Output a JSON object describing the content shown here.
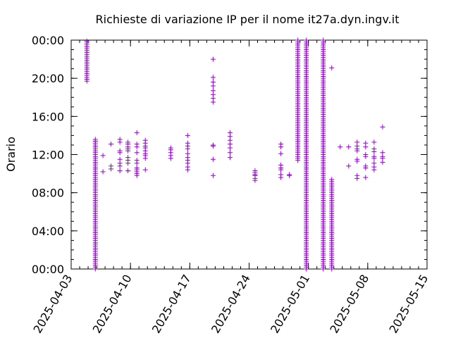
{
  "chart_data": {
    "type": "scatter",
    "title": "Richieste di variazione IP per il nome it27a.dyn.ingv.it",
    "xlabel": "",
    "ylabel": "Orario",
    "marker": "+",
    "color": "#9400d3",
    "grid": false,
    "x_ticks": [
      "2025-04-03",
      "2025-04-10",
      "2025-04-17",
      "2025-04-24",
      "2025-05-01",
      "2025-05-08",
      "2025-05-15"
    ],
    "xlim_days": [
      0,
      42
    ],
    "y_ticks": [
      "00:00",
      "04:00",
      "08:00",
      "12:00",
      "16:00",
      "20:00",
      "00:00"
    ],
    "ylim_hours": [
      0,
      24
    ],
    "x_unit": "days since 2025-04-03",
    "y_unit": "hours of day",
    "columns": [
      {
        "day": 1.85,
        "hours": [
          19.7,
          19.9,
          20.1,
          20.3,
          20.5,
          20.7,
          20.9,
          21.1,
          21.3,
          21.5,
          21.7,
          21.9,
          22.1,
          22.3,
          22.5,
          22.7,
          22.9,
          23.1,
          23.3,
          23.5,
          23.7,
          23.9
        ]
      },
      {
        "day": 2.85,
        "range": [
          0.0,
          13.6
        ],
        "step": 0.2
      },
      {
        "day": 3.75,
        "hours": [
          10.2,
          11.9
        ]
      },
      {
        "day": 4.7,
        "hours": [
          10.5,
          10.8,
          13.1
        ]
      },
      {
        "day": 5.75,
        "hours": [
          10.3,
          10.8,
          11.1,
          11.5,
          12.2,
          12.4,
          13.3,
          13.6
        ]
      },
      {
        "day": 6.7,
        "hours": [
          10.3,
          11.1,
          11.4,
          11.7,
          12.4,
          12.6,
          12.8,
          13.1,
          13.3
        ]
      },
      {
        "day": 7.75,
        "hours": [
          9.8,
          10.0,
          10.2,
          10.4,
          10.6,
          11.1,
          11.4,
          12.2,
          12.8,
          13.1,
          14.3
        ]
      },
      {
        "day": 8.75,
        "hours": [
          10.4,
          11.6,
          11.9,
          12.1,
          12.4,
          12.7,
          12.9,
          13.2,
          13.5
        ]
      },
      {
        "day": 11.75,
        "hours": [
          11.6,
          11.9,
          12.2,
          12.5,
          12.7
        ]
      },
      {
        "day": 13.75,
        "hours": [
          10.4,
          10.7,
          11.1,
          11.4,
          11.7,
          12.1,
          12.6,
          12.9,
          13.2,
          14.0
        ]
      },
      {
        "day": 16.75,
        "hours": [
          9.8,
          11.5,
          12.9,
          13.0,
          17.5,
          17.9,
          18.3,
          18.7,
          19.2,
          19.6,
          20.1,
          22.0
        ]
      },
      {
        "day": 18.75,
        "hours": [
          11.7,
          12.2,
          12.7,
          13.1,
          13.5,
          13.9,
          14.3
        ]
      },
      {
        "day": 21.7,
        "hours": [
          9.3,
          9.5,
          9.8,
          9.9,
          10.1,
          10.3
        ]
      },
      {
        "day": 24.75,
        "hours": [
          9.6,
          9.9,
          10.4,
          10.6,
          10.9,
          12.1,
          12.8,
          13.1
        ]
      },
      {
        "day": 25.75,
        "hours": [
          9.8,
          9.9
        ]
      },
      {
        "day": 26.75,
        "range": [
          11.4,
          24.0
        ],
        "step": 0.2
      },
      {
        "day": 27.75,
        "range": [
          0.0,
          24.0
        ],
        "step": 0.2
      },
      {
        "day": 29.75,
        "range": [
          0.0,
          24.0
        ],
        "step": 0.2
      },
      {
        "day": 30.75,
        "range": [
          0.0,
          9.5
        ],
        "step": 0.2
      },
      {
        "day": 30.75,
        "hours": [
          21.1
        ]
      },
      {
        "day": 31.75,
        "hours": [
          12.8
        ]
      },
      {
        "day": 32.75,
        "hours": [
          10.8,
          12.8
        ]
      },
      {
        "day": 33.75,
        "hours": [
          9.5,
          9.8,
          11.3,
          11.5,
          12.4,
          12.6,
          12.9,
          13.3
        ]
      },
      {
        "day": 34.75,
        "hours": [
          9.6,
          10.6,
          10.8,
          11.8,
          12.0,
          12.8,
          13.2
        ]
      },
      {
        "day": 35.75,
        "hours": [
          10.4,
          10.7,
          11.1,
          11.6,
          11.8,
          12.3,
          12.6,
          13.3
        ]
      },
      {
        "day": 36.75,
        "hours": [
          11.2,
          11.6,
          11.8,
          12.2,
          14.9
        ]
      }
    ]
  }
}
